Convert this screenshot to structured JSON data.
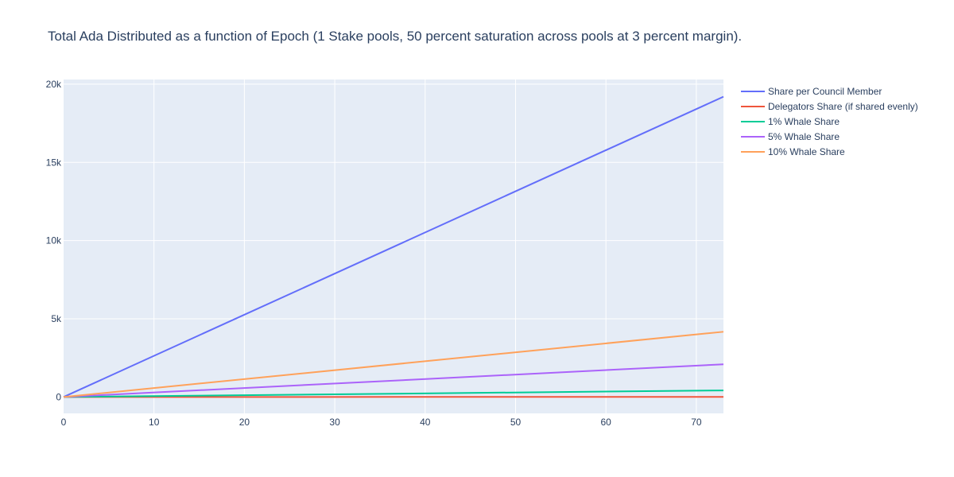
{
  "chart_data": {
    "type": "line",
    "title": "Total Ada Distributed as a function of Epoch (1 Stake pools, 50 percent saturation across pools at 3 percent margin).",
    "xlabel": "",
    "ylabel": "",
    "xlim": [
      0,
      73
    ],
    "ylim": [
      -1050,
      20300
    ],
    "x_ticks": [
      0,
      10,
      20,
      30,
      40,
      50,
      60,
      70
    ],
    "x_tick_labels": [
      "0",
      "10",
      "20",
      "30",
      "40",
      "50",
      "60",
      "70"
    ],
    "y_ticks": [
      0,
      5000,
      10000,
      15000,
      20000
    ],
    "y_tick_labels": [
      "0",
      "5k",
      "10k",
      "15k",
      "20k"
    ],
    "grid": true,
    "legend_position": "top-right outside",
    "series": [
      {
        "name": "Share per Council Member",
        "color": "#636efa",
        "x": [
          0,
          73
        ],
        "y": [
          0,
          19200
        ]
      },
      {
        "name": "Delegators Share (if shared evenly)",
        "color": "#ef553b",
        "x": [
          0,
          73
        ],
        "y": [
          0,
          4
        ]
      },
      {
        "name": "1% Whale Share",
        "color": "#00cc96",
        "x": [
          0,
          73
        ],
        "y": [
          0,
          420
        ]
      },
      {
        "name": "5% Whale Share",
        "color": "#ab63fa",
        "x": [
          0,
          73
        ],
        "y": [
          0,
          2090
        ]
      },
      {
        "name": "10% Whale Share",
        "color": "#ffa15a",
        "x": [
          0,
          73
        ],
        "y": [
          0,
          4170
        ]
      }
    ]
  }
}
